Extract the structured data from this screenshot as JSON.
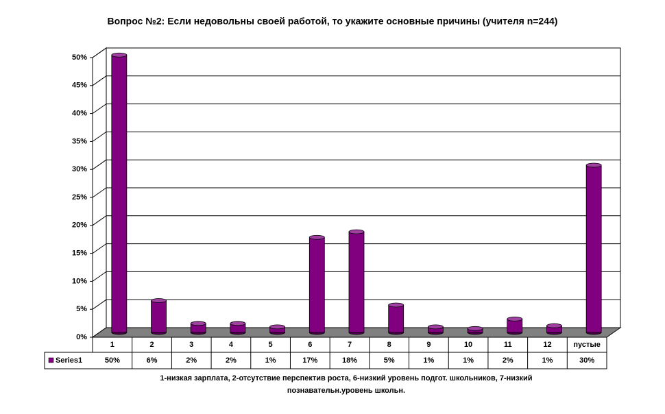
{
  "chart_data": {
    "type": "bar",
    "title": "Вопрос №2: Если недовольны своей работой, то укажите основные причины (учителя n=244)",
    "categories": [
      "1",
      "2",
      "3",
      "4",
      "5",
      "6",
      "7",
      "8",
      "9",
      "10",
      "11",
      "12",
      "пустые"
    ],
    "series": [
      {
        "name": "Series1",
        "color": "#800080",
        "values": [
          49.6,
          5.7,
          1.6,
          1.6,
          1.0,
          17.0,
          18.0,
          4.9,
          1.0,
          0.7,
          2.4,
          1.2,
          29.9
        ],
        "value_labels": [
          "50%",
          "6%",
          "2%",
          "2%",
          "1%",
          "17%",
          "18%",
          "5%",
          "1%",
          "1%",
          "2%",
          "1%",
          "30%"
        ]
      }
    ],
    "ylim": [
      0,
      50
    ],
    "yticks": [
      {
        "value": 0,
        "label": "0%"
      },
      {
        "value": 5,
        "label": "5%"
      },
      {
        "value": 10,
        "label": "10%"
      },
      {
        "value": 15,
        "label": "15%"
      },
      {
        "value": 20,
        "label": "20%"
      },
      {
        "value": 25,
        "label": "25%"
      },
      {
        "value": 30,
        "label": "30%"
      },
      {
        "value": 35,
        "label": "35%"
      },
      {
        "value": 40,
        "label": "40%"
      },
      {
        "value": 45,
        "label": "45%"
      },
      {
        "value": 50,
        "label": "50%"
      }
    ],
    "grid": true,
    "note_lines": [
      "1-низкая зарплата, 2-отсутствие перспектив роста, 6-низкий уровень подгот. школьников, 7-низкий",
      "познавательн.уровень школьн."
    ]
  }
}
